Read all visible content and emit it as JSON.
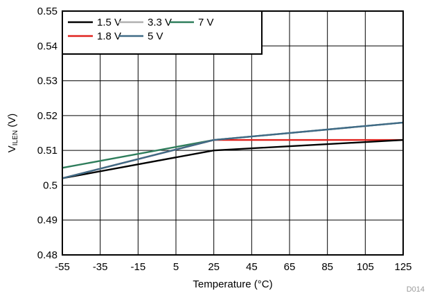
{
  "chart_data": {
    "type": "line",
    "xlabel": "Temperature (°C)",
    "ylabel_main": "V",
    "ylabel_sub": "ILEN",
    "ylabel_unit": " (V)",
    "xlim": [
      -55,
      125
    ],
    "ylim": [
      0.48,
      0.55
    ],
    "xticks": [
      -55,
      -35,
      -15,
      5,
      25,
      45,
      65,
      85,
      105,
      125
    ],
    "yticks": [
      0.48,
      0.49,
      0.5,
      0.51,
      0.52,
      0.53,
      0.54,
      0.55
    ],
    "ytick_labels": [
      "0.48",
      "0.49",
      "0.5",
      "0.51",
      "0.52",
      "0.53",
      "0.54",
      "0.55"
    ],
    "grid": true,
    "legend_position": "top-left",
    "figure_id": "D014",
    "series": [
      {
        "name": "1.5 V",
        "color": "#000000",
        "x": [
          -55,
          25,
          125
        ],
        "y": [
          0.502,
          0.51,
          0.513
        ]
      },
      {
        "name": "3.3 V",
        "color": "#b0b0b0",
        "x": [
          -55,
          25,
          125
        ],
        "y": [
          0.502,
          0.513,
          0.518
        ]
      },
      {
        "name": "7 V",
        "color": "#2e7d5b",
        "x": [
          -55,
          25,
          125
        ],
        "y": [
          0.505,
          0.513,
          0.518
        ]
      },
      {
        "name": "1.8 V",
        "color": "#e0201b",
        "x": [
          -55,
          25,
          125
        ],
        "y": [
          0.502,
          0.513,
          0.513
        ]
      },
      {
        "name": "5 V",
        "color": "#3f6a86",
        "x": [
          -55,
          25,
          125
        ],
        "y": [
          0.502,
          0.513,
          0.518
        ]
      }
    ],
    "draw_order": [
      2,
      3,
      0,
      1,
      4
    ],
    "legend_rows": [
      [
        0,
        1,
        2
      ],
      [
        3,
        4
      ]
    ]
  }
}
